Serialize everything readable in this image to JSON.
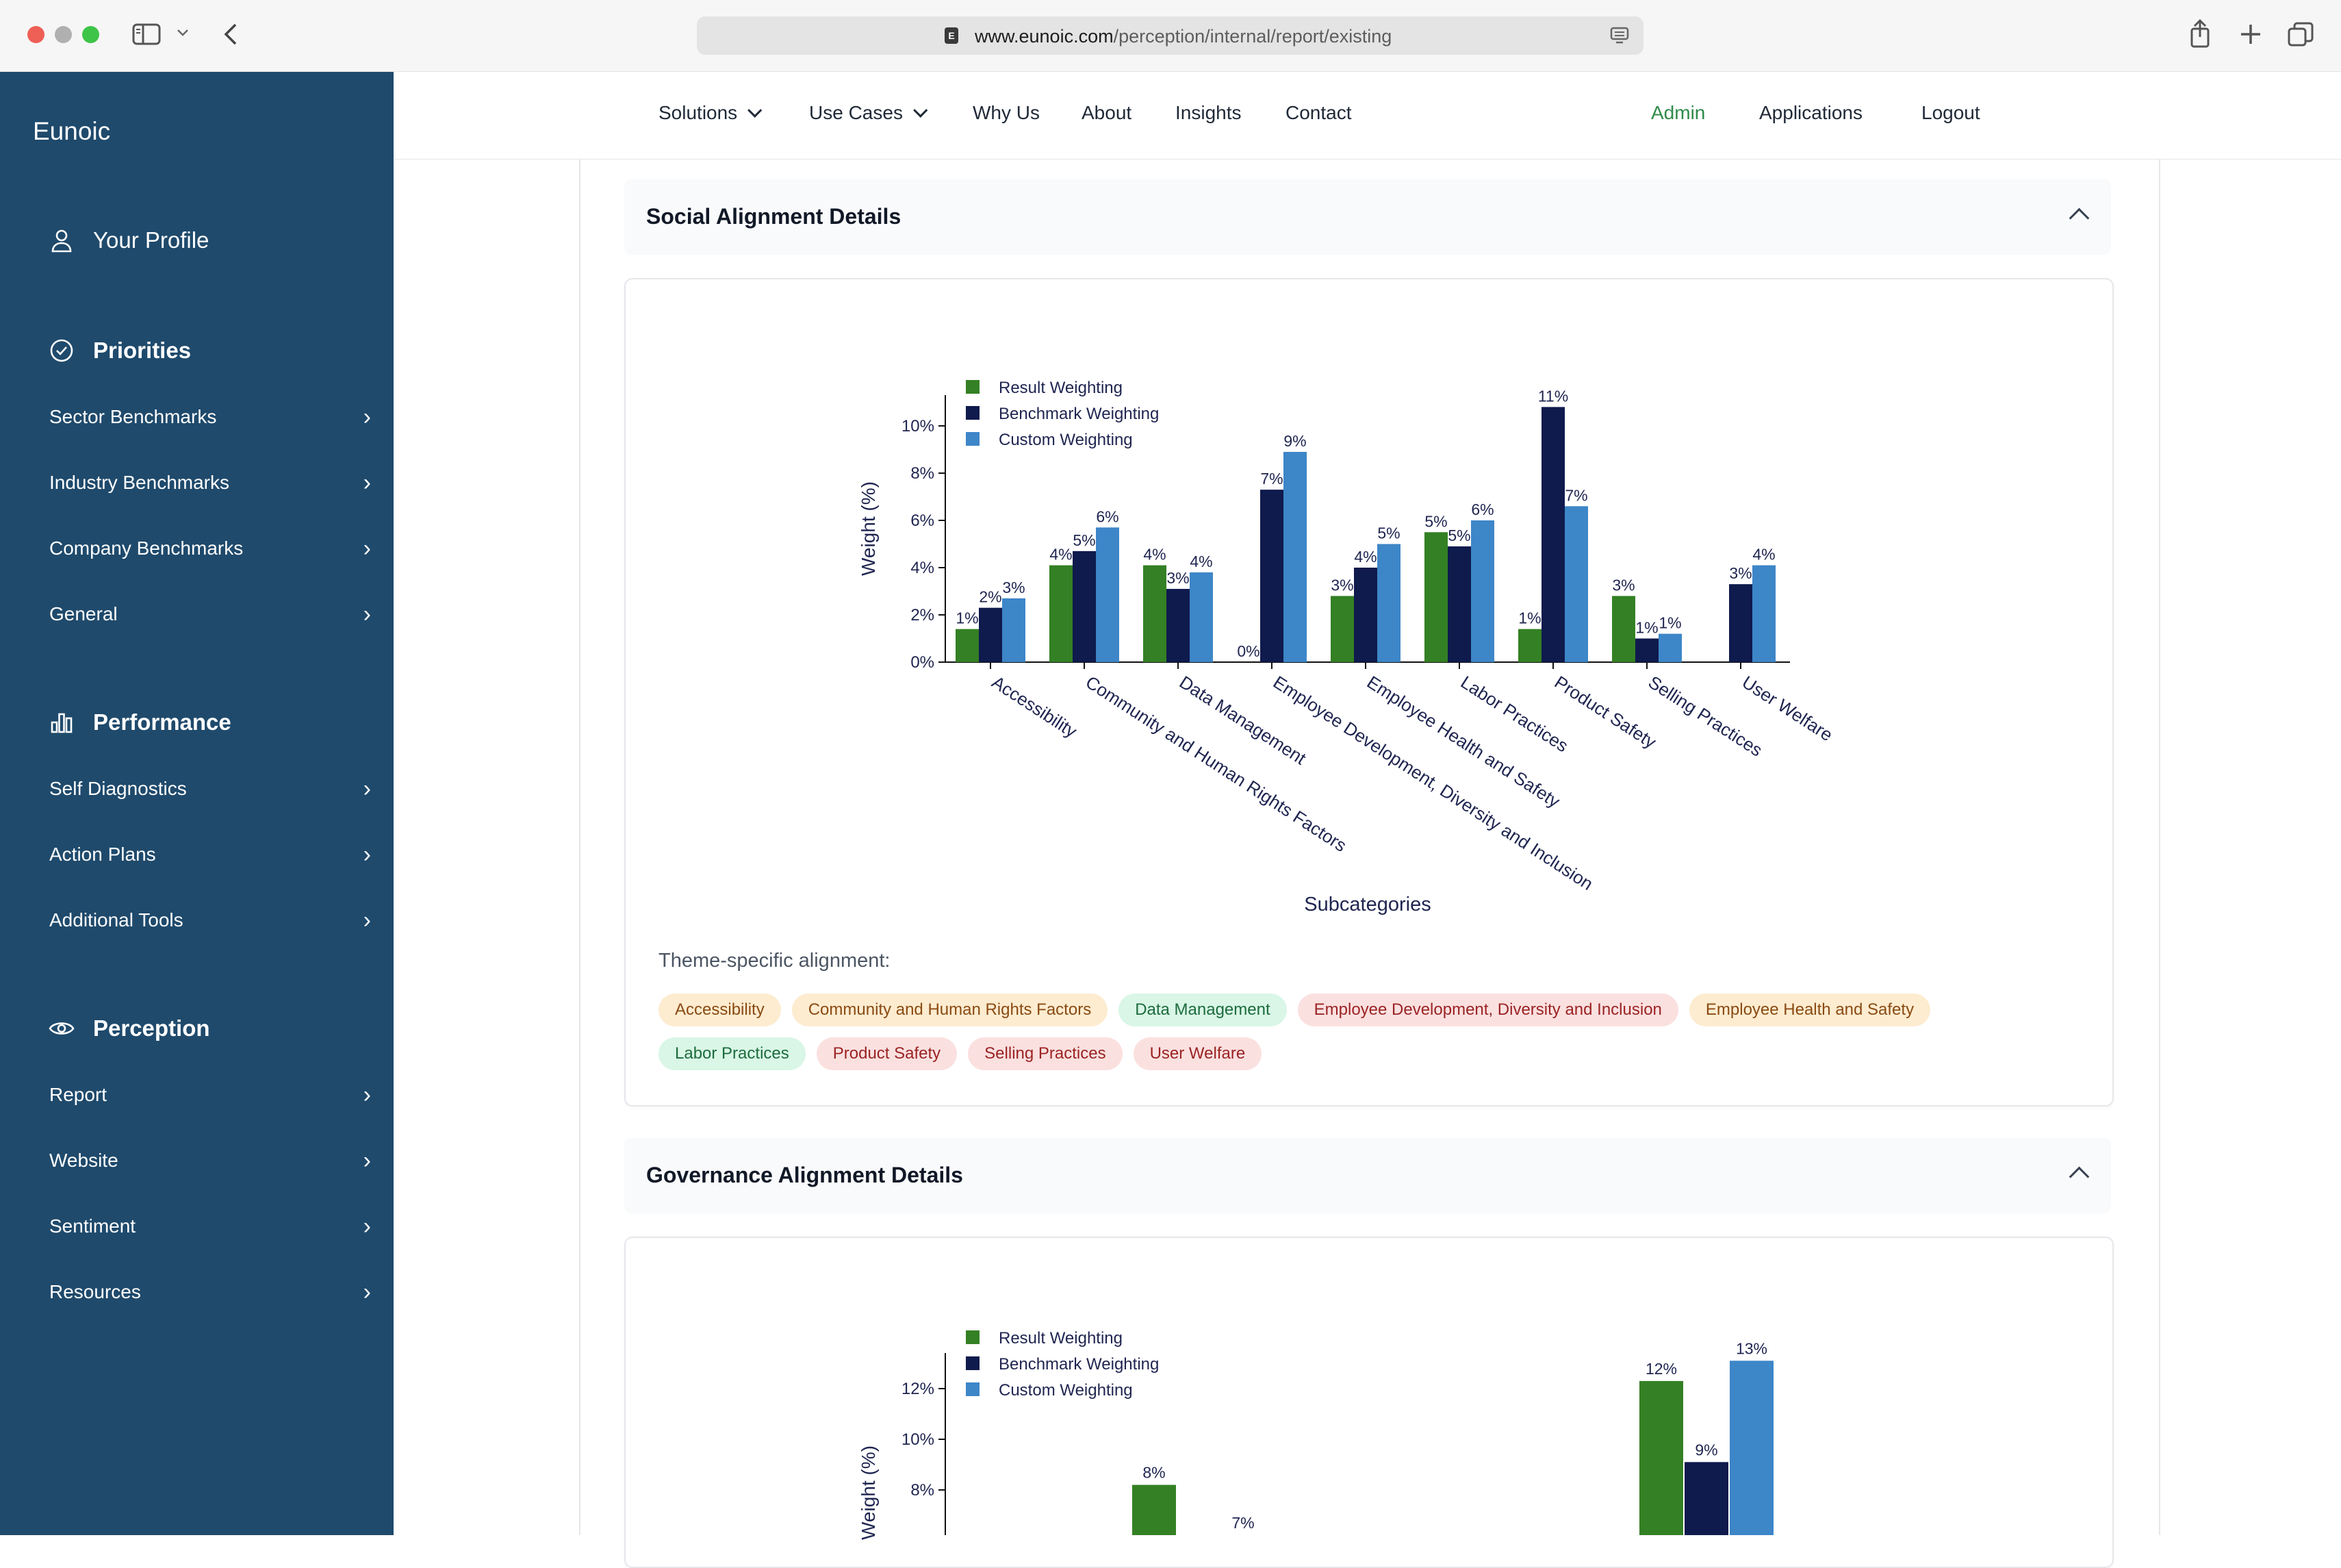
{
  "browser": {
    "url_host": "www.eunoic.com",
    "url_path": "/perception/internal/report/existing"
  },
  "sidebar": {
    "brand": "Eunoic",
    "profile_label": "Your Profile",
    "sections": [
      {
        "title": "Priorities",
        "icon": "check-circle-icon",
        "items": [
          "Sector Benchmarks",
          "Industry Benchmarks",
          "Company Benchmarks",
          "General"
        ]
      },
      {
        "title": "Performance",
        "icon": "bar-chart-icon",
        "items": [
          "Self Diagnostics",
          "Action Plans",
          "Additional Tools"
        ]
      },
      {
        "title": "Perception",
        "icon": "eye-icon",
        "items": [
          "Report",
          "Website",
          "Sentiment",
          "Resources"
        ]
      }
    ]
  },
  "topnav": {
    "items": [
      "Solutions",
      "Use Cases",
      "Why Us",
      "About",
      "Insights",
      "Contact"
    ],
    "admin": "Admin",
    "applications": "Applications",
    "logout": "Logout"
  },
  "colors": {
    "result": "#348024",
    "benchmark": "#0f1a4d",
    "custom": "#3d86c8",
    "sidebar": "#1f4a6c",
    "admin": "#2f8a4a"
  },
  "social": {
    "title": "Social Alignment Details",
    "theme_label": "Theme-specific alignment:",
    "tags": [
      {
        "label": "Accessibility",
        "tone": "orange"
      },
      {
        "label": "Community and Human Rights Factors",
        "tone": "orange"
      },
      {
        "label": "Data Management",
        "tone": "green"
      },
      {
        "label": "Employee Development, Diversity and Inclusion",
        "tone": "red"
      },
      {
        "label": "Employee Health and Safety",
        "tone": "orange"
      },
      {
        "label": "Labor Practices",
        "tone": "green"
      },
      {
        "label": "Product Safety",
        "tone": "red"
      },
      {
        "label": "Selling Practices",
        "tone": "red"
      },
      {
        "label": "User Welfare",
        "tone": "red"
      }
    ]
  },
  "governance": {
    "title": "Governance Alignment Details"
  },
  "chart_data": [
    {
      "type": "bar",
      "title": "",
      "xlabel": "Subcategories",
      "ylabel": "Weight (%)",
      "ylim": [
        0,
        11.3
      ],
      "yticks": [
        "0%",
        "2%",
        "4%",
        "6%",
        "8%",
        "10%"
      ],
      "legend_position": "top-left",
      "categories": [
        "Accessibility",
        "Community and Human Rights Factors",
        "Data Management",
        "Employee Development, Diversity and Inclusion",
        "Employee Health and Safety",
        "Labor Practices",
        "Product Safety",
        "Selling Practices",
        "User Welfare"
      ],
      "series": [
        {
          "name": "Result Weighting",
          "values": [
            1.4,
            4.1,
            4.1,
            0,
            2.8,
            5.5,
            1.4,
            2.8,
            0
          ],
          "labels": [
            "1%",
            "4%",
            "4%",
            "0%",
            "3%",
            "5%",
            "1%",
            "3%",
            ""
          ]
        },
        {
          "name": "Benchmark Weighting",
          "values": [
            2.3,
            4.7,
            3.1,
            7.3,
            4.0,
            4.9,
            10.8,
            1.0,
            3.3
          ],
          "labels": [
            "2%",
            "5%",
            "3%",
            "7%",
            "4%",
            "5%",
            "11%",
            "1%",
            "3%"
          ]
        },
        {
          "name": "Custom Weighting",
          "values": [
            2.7,
            5.7,
            3.8,
            8.9,
            5.0,
            6.0,
            6.6,
            1.2,
            4.1
          ],
          "labels": [
            "3%",
            "6%",
            "4%",
            "9%",
            "5%",
            "6%",
            "7%",
            "1%",
            "4%"
          ]
        }
      ]
    },
    {
      "type": "bar",
      "title": "",
      "xlabel": "",
      "ylabel": "Weight (%)",
      "ylim": [
        0,
        13.2
      ],
      "yticks": [
        "8%",
        "10%",
        "12%"
      ],
      "legend_position": "top-left",
      "series": [
        {
          "name": "Result Weighting",
          "values": [
            8.2,
            12.3
          ],
          "labels": [
            "8%",
            "12%"
          ]
        },
        {
          "name": "Benchmark Weighting",
          "values": [
            9.1
          ],
          "labels": [
            "9%"
          ]
        },
        {
          "name": "Custom Weighting",
          "values": [
            13.1
          ],
          "labels": [
            "13%"
          ]
        }
      ],
      "other_labels": [
        "7%"
      ]
    }
  ]
}
